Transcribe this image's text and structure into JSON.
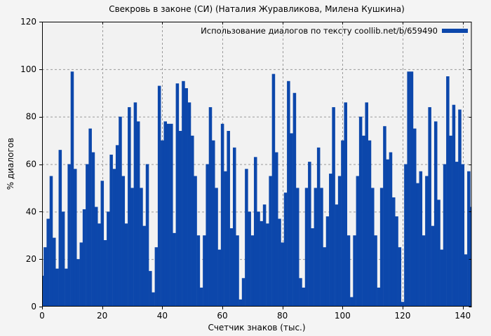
{
  "chart_data": {
    "type": "bar",
    "title": "Свекровь в законе (СИ) (Наталия Журавликова, Милена Кушкина)",
    "legend_label": "Использование диалогов по тексту coollib.net/b/659490",
    "xlabel": "Счетчик знаков (тыс.)",
    "ylabel": "% диалогов",
    "x_ticks": [
      0,
      20,
      40,
      60,
      80,
      100,
      120,
      140
    ],
    "y_ticks": [
      0,
      20,
      40,
      60,
      80,
      100,
      120
    ],
    "xlim": [
      0,
      143
    ],
    "ylim": [
      0,
      120
    ],
    "grid": true,
    "legend_position": "top-right-inside",
    "bar_color": "#0c47ab",
    "background_color": "#f2f2f2",
    "grid_color": "#9a9a9a",
    "x_start": 0,
    "x_step": 1,
    "values": [
      13,
      25,
      37,
      55,
      29,
      16,
      66,
      40,
      16,
      60,
      99,
      58,
      20,
      27,
      41,
      60,
      75,
      65,
      42,
      35,
      53,
      28,
      40,
      64,
      58,
      68,
      80,
      55,
      35,
      84,
      50,
      86,
      78,
      50,
      34,
      60,
      15,
      6,
      25,
      93,
      70,
      78,
      77,
      77,
      31,
      94,
      74,
      95,
      92,
      86,
      72,
      55,
      30,
      8,
      30,
      60,
      84,
      70,
      50,
      24,
      77,
      57,
      74,
      33,
      67,
      30,
      3,
      12,
      58,
      40,
      30,
      63,
      40,
      36,
      43,
      35,
      55,
      98,
      65,
      37,
      27,
      48,
      95,
      73,
      90,
      50,
      12,
      8,
      50,
      61,
      33,
      50,
      67,
      50,
      25,
      38,
      56,
      84,
      43,
      55,
      70,
      86,
      30,
      4,
      30,
      55,
      80,
      72,
      86,
      70,
      50,
      30,
      8,
      50,
      76,
      62,
      65,
      46,
      38,
      25,
      2,
      60,
      99,
      99,
      75,
      52,
      57,
      30,
      55,
      84,
      34,
      78,
      45,
      24,
      60,
      97,
      72,
      85,
      61,
      83,
      60,
      22,
      57,
      42
    ]
  }
}
